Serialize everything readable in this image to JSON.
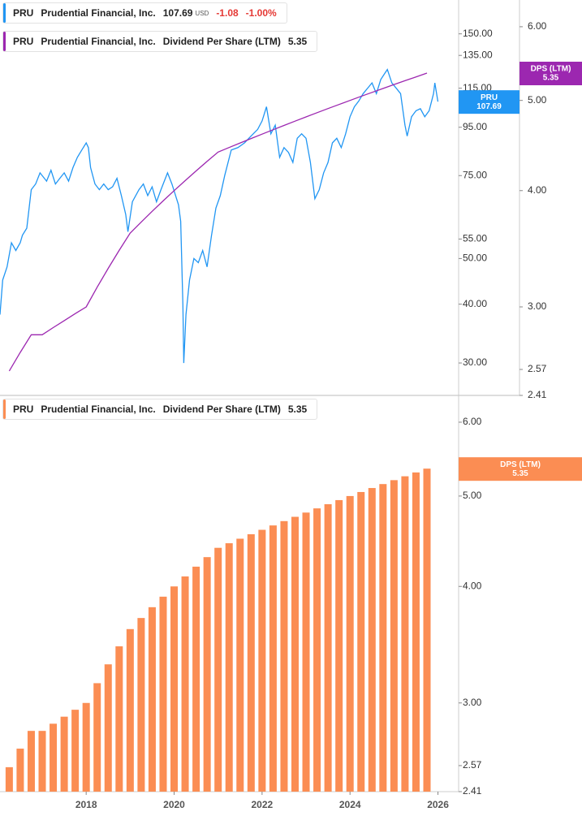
{
  "chart_data": [
    {
      "type": "line",
      "ticker": "PRU",
      "company": "Prudential Financial, Inc.",
      "currency": "USD",
      "change": "-1.08",
      "change_percent": "-1.00%",
      "log_scale": true,
      "xlim": [
        2016.04,
        2026.47
      ],
      "ylim": [
        25.6,
        177
      ],
      "y2lim": [
        2.41,
        6.41
      ],
      "yticks": [
        {
          "value": 150,
          "label": "150.00"
        },
        {
          "value": 135,
          "label": "135.00"
        },
        {
          "value": 115,
          "label": "115.00"
        },
        {
          "value": 95,
          "label": "95.00"
        },
        {
          "value": 75,
          "label": "75.00"
        },
        {
          "value": 55,
          "label": "55.00"
        },
        {
          "value": 50,
          "label": "50.00"
        },
        {
          "value": 40,
          "label": "40.00"
        },
        {
          "value": 30,
          "label": "30.00"
        }
      ],
      "y2ticks": [
        {
          "value": 6,
          "label": "6.00"
        },
        {
          "value": 5,
          "label": "5.00"
        },
        {
          "value": 4,
          "label": "4.00"
        },
        {
          "value": 3,
          "label": "3.00"
        },
        {
          "value": 2.57,
          "label": "2.57"
        },
        {
          "value": 2.41,
          "label": "2.41"
        }
      ],
      "series": [
        {
          "name": "PRU",
          "tag": "PRU",
          "color": "#2196f3",
          "x": [
            2016.04,
            2016.1,
            2016.2,
            2016.3,
            2016.4,
            2016.5,
            2016.55,
            2016.65,
            2016.75,
            2016.85,
            2016.95,
            2017.1,
            2017.2,
            2017.3,
            2017.4,
            2017.5,
            2017.6,
            2017.7,
            2017.8,
            2017.9,
            2018.0,
            2018.05,
            2018.1,
            2018.2,
            2018.3,
            2018.4,
            2018.5,
            2018.6,
            2018.7,
            2018.8,
            2018.9,
            2018.95,
            2019.05,
            2019.2,
            2019.3,
            2019.4,
            2019.5,
            2019.6,
            2019.7,
            2019.85,
            2019.95,
            2020.1,
            2020.15,
            2020.2,
            2020.22,
            2020.27,
            2020.35,
            2020.45,
            2020.55,
            2020.65,
            2020.75,
            2020.85,
            2020.95,
            2021.05,
            2021.15,
            2021.3,
            2021.45,
            2021.6,
            2021.7,
            2021.8,
            2021.9,
            2022.0,
            2022.1,
            2022.2,
            2022.3,
            2022.4,
            2022.5,
            2022.6,
            2022.7,
            2022.8,
            2022.9,
            2023.0,
            2023.1,
            2023.2,
            2023.3,
            2023.4,
            2023.5,
            2023.6,
            2023.7,
            2023.8,
            2023.9,
            2024.0,
            2024.1,
            2024.2,
            2024.3,
            2024.4,
            2024.5,
            2024.6,
            2024.7,
            2024.8,
            2024.85,
            2024.95,
            2025.05,
            2025.15,
            2025.25,
            2025.3,
            2025.4,
            2025.5,
            2025.6,
            2025.7,
            2025.8,
            2025.9,
            2025.93,
            2026.0
          ],
          "values": [
            38,
            45,
            48,
            54,
            52,
            54,
            56,
            58,
            70,
            72,
            76,
            73,
            77,
            72,
            74,
            76,
            73,
            78,
            82,
            85,
            88,
            86,
            78,
            72,
            70,
            72,
            70,
            71,
            74,
            68,
            62,
            57,
            66,
            70,
            72,
            68,
            71,
            66,
            70,
            76,
            72,
            65,
            60,
            40,
            30,
            38,
            45,
            50,
            49,
            52,
            48,
            56,
            64,
            68,
            75,
            85,
            86,
            88,
            90,
            92,
            94,
            98,
            105,
            92,
            96,
            82,
            86,
            84,
            80,
            90,
            92,
            90,
            80,
            67,
            70,
            76,
            80,
            88,
            90,
            86,
            92,
            100,
            105,
            108,
            112,
            115,
            118,
            112,
            120,
            124,
            126,
            118,
            115,
            112,
            96,
            91,
            100,
            103,
            104,
            100,
            103,
            112,
            118,
            107.69
          ]
        },
        {
          "name": "Dividend Per Share (LTM)",
          "tag": "DPS (LTM)",
          "color": "#9c27b0",
          "axis": "y2",
          "x": [
            2016.25,
            2016.5,
            2016.75,
            2017,
            2017.25,
            2017.5,
            2017.75,
            2018,
            2018.25,
            2018.5,
            2018.75,
            2019,
            2019.25,
            2019.5,
            2019.75,
            2020,
            2020.25,
            2020.5,
            2020.75,
            2021,
            2021.25,
            2021.5,
            2021.75,
            2022,
            2022.25,
            2022.5,
            2022.75,
            2023,
            2023.25,
            2023.5,
            2023.75,
            2024,
            2024.25,
            2024.5,
            2024.75,
            2025,
            2025.25,
            2025.5,
            2025.75
          ],
          "values": [
            2.56,
            2.68,
            2.8,
            2.8,
            2.85,
            2.9,
            2.95,
            3.0,
            3.15,
            3.3,
            3.45,
            3.6,
            3.7,
            3.8,
            3.9,
            4.0,
            4.1,
            4.2,
            4.3,
            4.4,
            4.45,
            4.5,
            4.55,
            4.6,
            4.65,
            4.7,
            4.75,
            4.8,
            4.85,
            4.9,
            4.95,
            5.0,
            5.05,
            5.1,
            5.15,
            5.2,
            5.25,
            5.3,
            5.35
          ]
        }
      ]
    },
    {
      "type": "bar",
      "ticker": "PRU",
      "company": "Prudential Financial, Inc.",
      "log_scale": true,
      "xlim": [
        2016.04,
        2026.47
      ],
      "xticks": [
        2018,
        2020,
        2022,
        2024,
        2026
      ],
      "ylim": [
        2.41,
        6.41
      ],
      "yticks": [
        {
          "value": 6,
          "label": "6.00"
        },
        {
          "value": 5,
          "label": "5.00"
        },
        {
          "value": 4,
          "label": "4.00"
        },
        {
          "value": 3,
          "label": "3.00"
        },
        {
          "value": 2.57,
          "label": "2.57"
        },
        {
          "value": 2.41,
          "label": "2.41"
        }
      ],
      "series": [
        {
          "name": "Dividend Per Share (LTM)",
          "tag": "DPS (LTM)",
          "color": "#fb8d53",
          "x": [
            2016.25,
            2016.5,
            2016.75,
            2017,
            2017.25,
            2017.5,
            2017.75,
            2018,
            2018.25,
            2018.5,
            2018.75,
            2019,
            2019.25,
            2019.5,
            2019.75,
            2020,
            2020.25,
            2020.5,
            2020.75,
            2021,
            2021.25,
            2021.5,
            2021.75,
            2022,
            2022.25,
            2022.5,
            2022.75,
            2023,
            2023.25,
            2023.5,
            2023.75,
            2024,
            2024.25,
            2024.5,
            2024.75,
            2025,
            2025.25,
            2025.5,
            2025.75
          ],
          "values": [
            2.56,
            2.68,
            2.8,
            2.8,
            2.85,
            2.9,
            2.95,
            3.0,
            3.15,
            3.3,
            3.45,
            3.6,
            3.7,
            3.8,
            3.9,
            4.0,
            4.1,
            4.2,
            4.3,
            4.4,
            4.45,
            4.5,
            4.55,
            4.6,
            4.65,
            4.7,
            4.75,
            4.8,
            4.85,
            4.9,
            4.95,
            5.0,
            5.05,
            5.1,
            5.15,
            5.2,
            5.25,
            5.3,
            5.35
          ]
        }
      ]
    }
  ]
}
